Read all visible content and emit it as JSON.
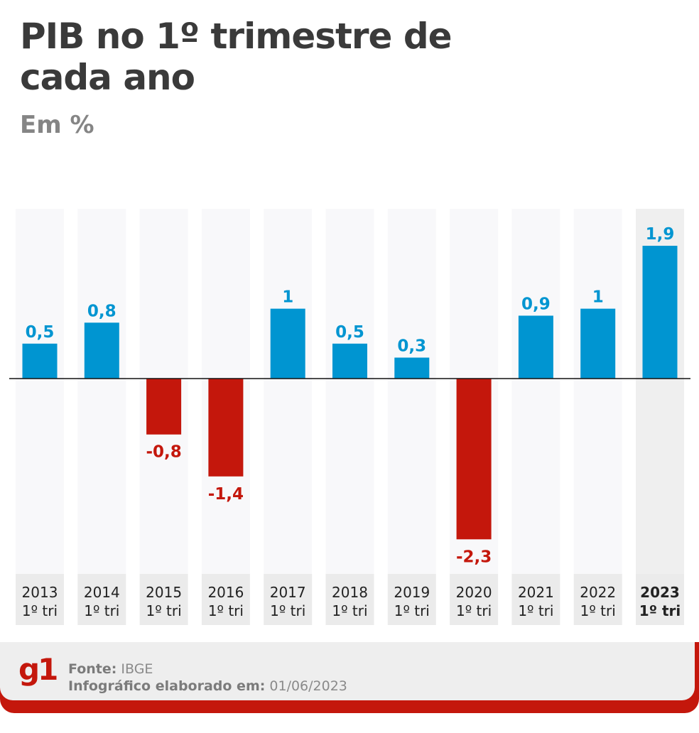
{
  "header": {
    "title": "PIB no 1º trimestre de cada ano",
    "subtitle": "Em %"
  },
  "colors": {
    "positive": "#0095d1",
    "negative": "#c4170c",
    "column_bg": "#f8f8fa",
    "column_bg_highlight": "#efefef",
    "label_bg": "#ebebeb",
    "title": "#3a3a3a",
    "subtitle": "#858585",
    "brand": "#c4170c"
  },
  "chart_data": {
    "type": "bar",
    "title": "PIB no 1º trimestre de cada ano",
    "subtitle": "Em %",
    "xlabel": "",
    "ylabel": "%",
    "ylim": [
      -2.3,
      1.9
    ],
    "grid": false,
    "legend": "none",
    "categories": [
      {
        "year": "2013",
        "period": "1º tri"
      },
      {
        "year": "2014",
        "period": "1º tri"
      },
      {
        "year": "2015",
        "period": "1º tri"
      },
      {
        "year": "2016",
        "period": "1º tri"
      },
      {
        "year": "2017",
        "period": "1º tri"
      },
      {
        "year": "2018",
        "period": "1º tri"
      },
      {
        "year": "2019",
        "period": "1º tri"
      },
      {
        "year": "2020",
        "period": "1º tri"
      },
      {
        "year": "2021",
        "period": "1º tri"
      },
      {
        "year": "2022",
        "period": "1º tri"
      },
      {
        "year": "2023",
        "period": "1º tri"
      }
    ],
    "values": [
      0.5,
      0.8,
      -0.8,
      -1.4,
      1.0,
      0.5,
      0.3,
      -2.3,
      0.9,
      1.0,
      1.9
    ],
    "value_labels": [
      "0,5",
      "0,8",
      "-0,8",
      "-1,4",
      "1",
      "0,5",
      "0,3",
      "-2,3",
      "0,9",
      "1",
      "1,9"
    ],
    "highlight_index": 10
  },
  "footer": {
    "logo": "g1",
    "source_label": "Fonte:",
    "source_value": "IBGE",
    "created_label": "Infográfico elaborado em:",
    "created_value": "01/06/2023"
  }
}
